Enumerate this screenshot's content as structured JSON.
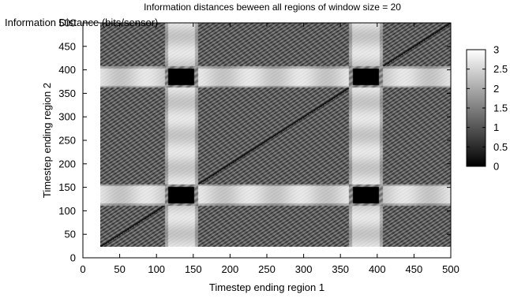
{
  "chart_data": {
    "type": "heatmap",
    "title": "Information distances beween all regions of window size = 20",
    "colorbar_label": "Information Distance (bits/sensor)",
    "xlabel": "Timestep ending region 1",
    "ylabel": "Timestep ending region 2",
    "xlim": [
      0,
      500
    ],
    "ylim": [
      0,
      500
    ],
    "data_extent": {
      "x": [
        25,
        500
      ],
      "y": [
        25,
        500
      ]
    },
    "x_ticks": [
      "0",
      "50",
      "100",
      "150",
      "200",
      "250",
      "300",
      "350",
      "400",
      "450",
      "500"
    ],
    "y_ticks": [
      "0",
      "50",
      "100",
      "150",
      "200",
      "250",
      "300",
      "350",
      "400",
      "450",
      "500"
    ],
    "colorbar_range": [
      0,
      3
    ],
    "colorbar_ticks": [
      "0",
      "0.5",
      "1",
      "1.5",
      "2",
      "2.5",
      "3"
    ],
    "colormap": "gray",
    "grid": false,
    "structure": {
      "bright_bands_centered_at": [
        135,
        385
      ],
      "bright_band_width": 45,
      "bright_band_value": 2.5,
      "minimum_blocks_at": [
        [
          135,
          135
        ],
        [
          135,
          385
        ],
        [
          385,
          135
        ],
        [
          385,
          385
        ]
      ],
      "minimum_block_value": 0,
      "minimum_block_size": 35,
      "background_mean_value": 1.1,
      "diagonal_pattern": "diagonal stripes parallel to x = y, with a dark line at x = y"
    }
  }
}
